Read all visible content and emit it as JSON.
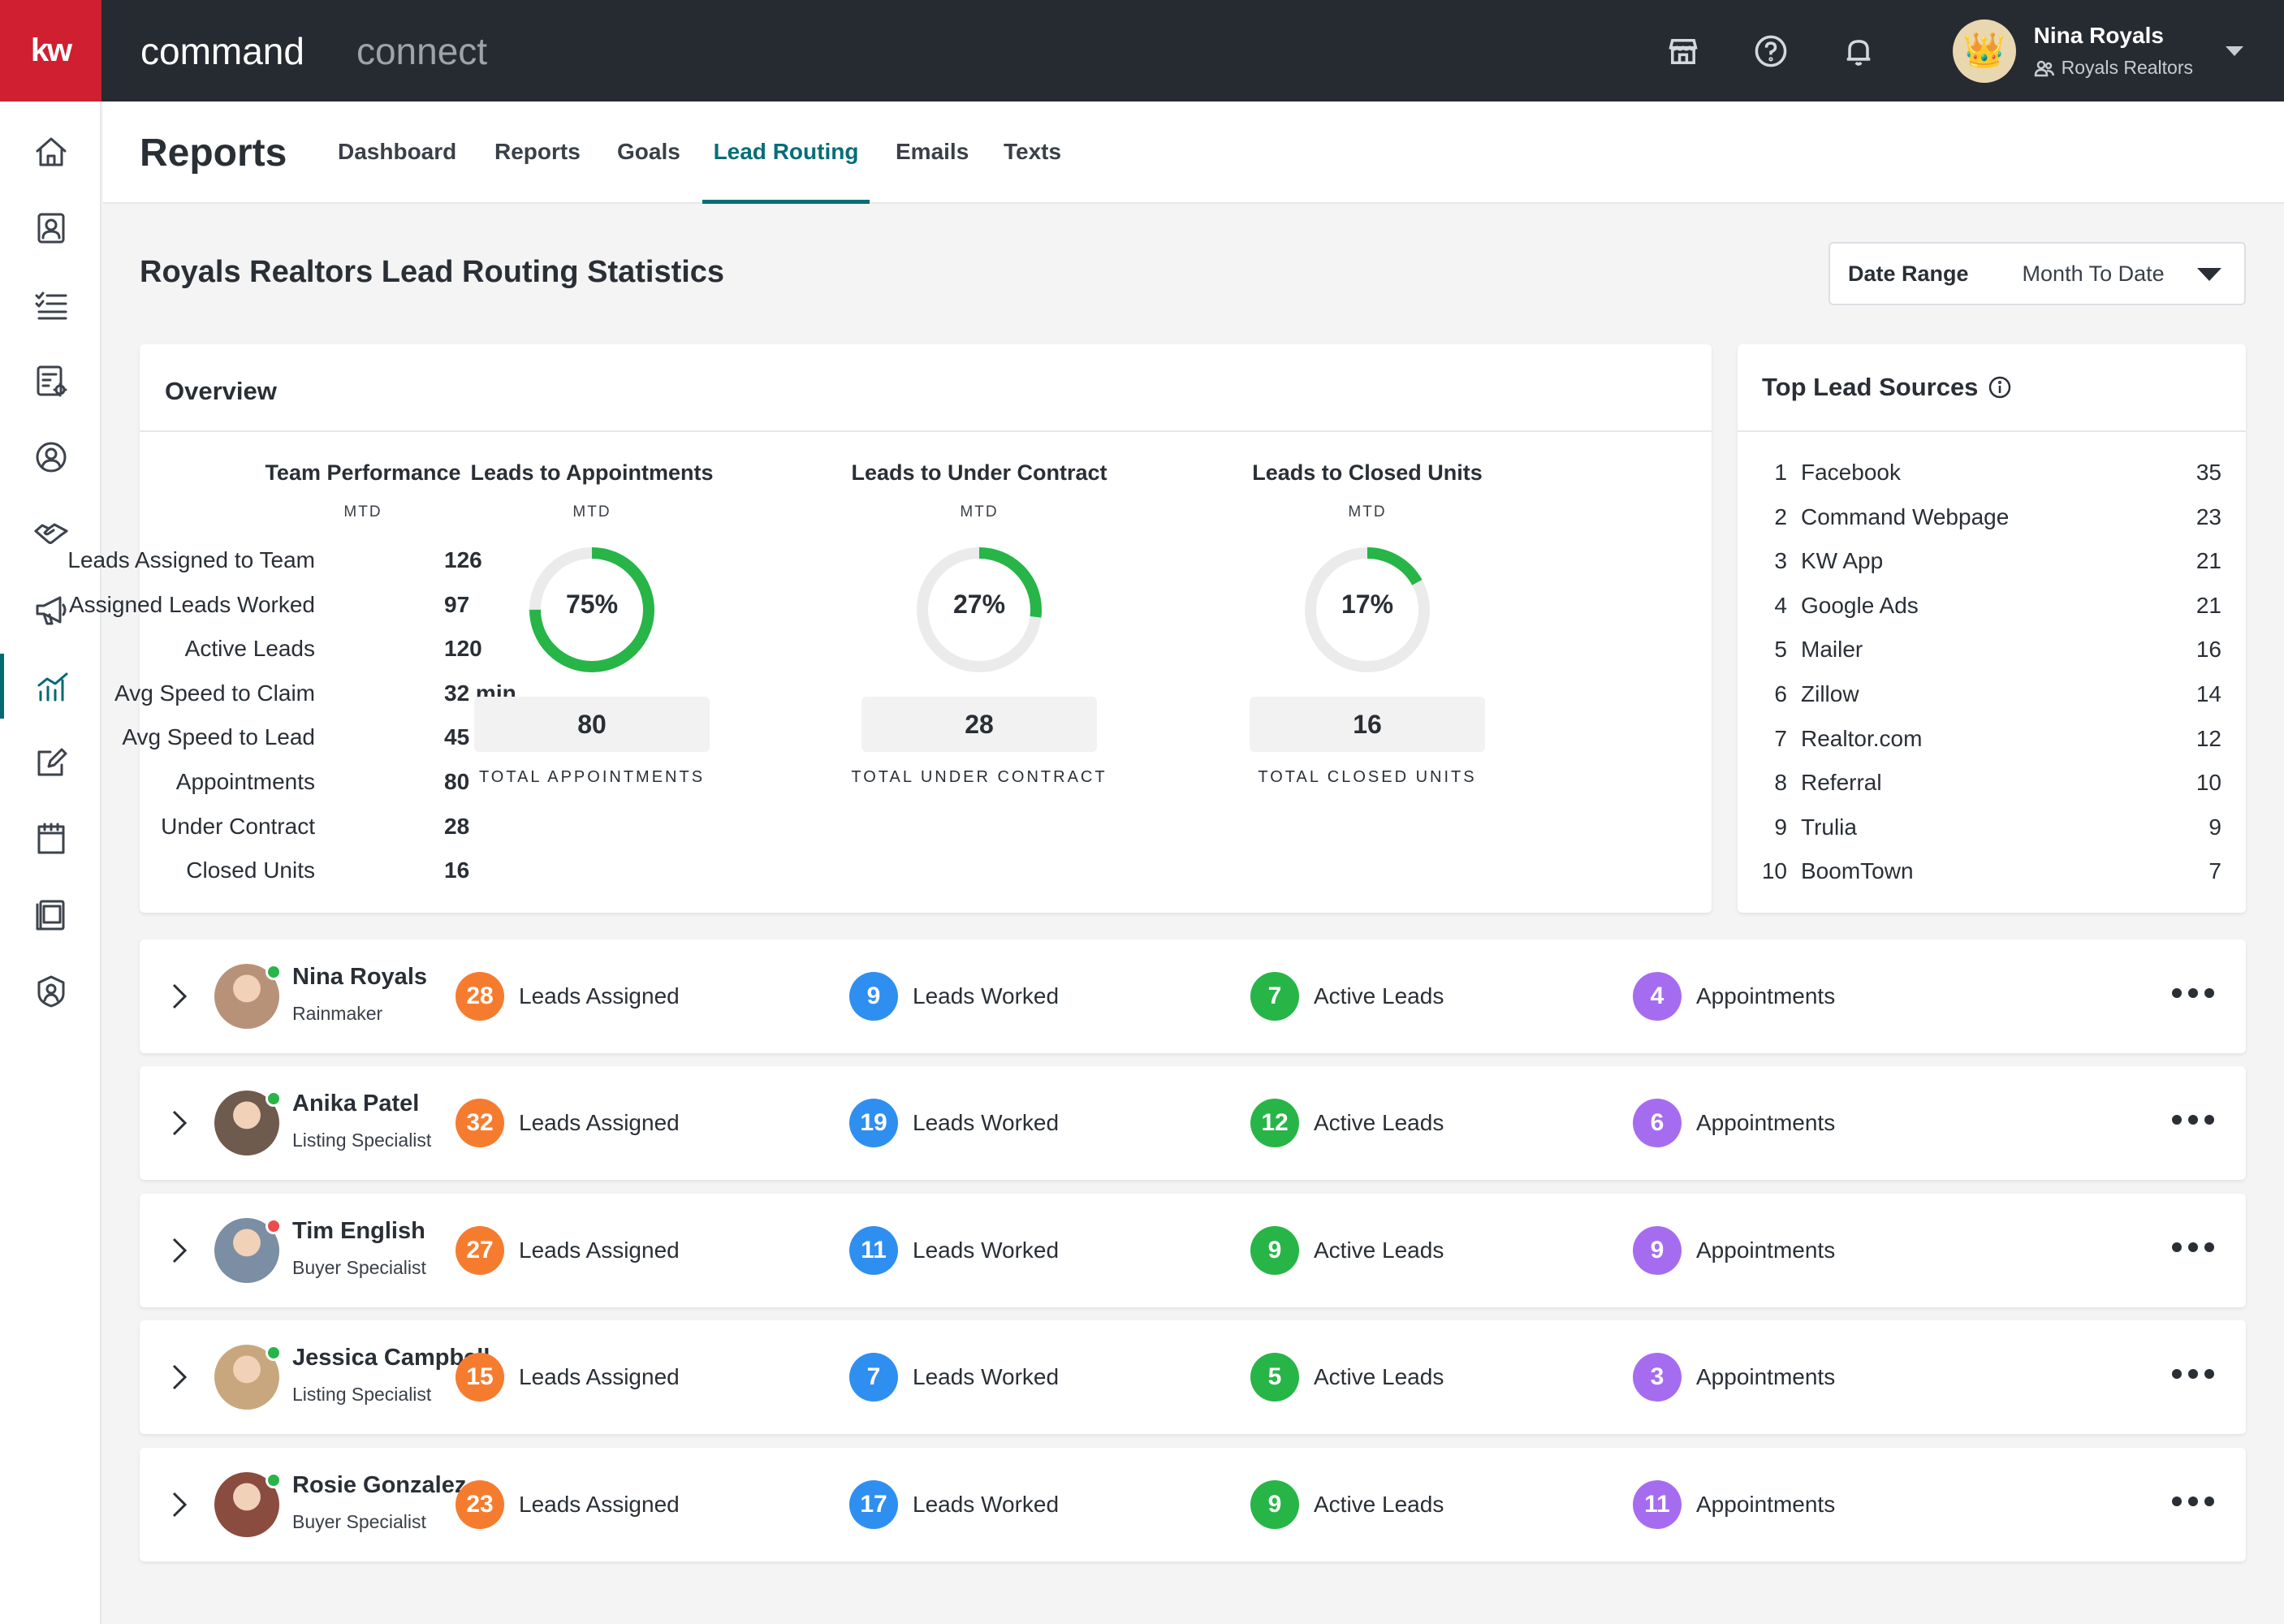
{
  "topbar": {
    "logo": "kw",
    "app_primary": "command",
    "app_secondary": "connect",
    "icons": [
      "store-icon",
      "help-icon",
      "bell-icon"
    ],
    "user": {
      "name": "Nina Royals",
      "team": "Royals Realtors",
      "avatar_icon": "crown-icon"
    }
  },
  "sidebar": {
    "items": [
      "home-icon",
      "contacts-icon",
      "tasks-icon",
      "forms-icon",
      "profile-icon",
      "handshake-icon",
      "megaphone-icon",
      "reports-icon",
      "edit-icon",
      "calendar-icon",
      "kw-docs-icon",
      "help-person-icon"
    ],
    "active_index": 7
  },
  "subheader": {
    "title": "Reports",
    "tabs": [
      {
        "label": "Dashboard",
        "active": false
      },
      {
        "label": "Reports",
        "active": false
      },
      {
        "label": "Goals",
        "active": false
      },
      {
        "label": "Lead Routing",
        "active": true
      },
      {
        "label": "Emails",
        "active": false
      },
      {
        "label": "Texts",
        "active": false
      }
    ]
  },
  "section_title": "Royals Realtors Lead Routing Statistics",
  "date_range": {
    "label": "Date Range",
    "value": "Month To Date"
  },
  "overview": {
    "title": "Overview",
    "team_performance": {
      "title": "Team Performance",
      "period": "MTD",
      "rows": [
        {
          "label": "Leads Assigned to Team",
          "value": "126"
        },
        {
          "label": "Assigned Leads Worked",
          "value": "97"
        },
        {
          "label": "Active Leads",
          "value": "120"
        },
        {
          "label": "Avg Speed to Claim",
          "value": "32 min"
        },
        {
          "label": "Avg Speed to Lead",
          "value": "45 min"
        },
        {
          "label": "Appointments",
          "value": "80"
        },
        {
          "label": "Under Contract",
          "value": "28"
        },
        {
          "label": "Closed Units",
          "value": "16"
        }
      ]
    },
    "conversions": [
      {
        "title": "Leads to Appointments",
        "period": "MTD",
        "percent": 75,
        "percent_label": "75%",
        "total": "80",
        "total_label": "TOTAL APPOINTMENTS"
      },
      {
        "title": "Leads to Under Contract",
        "period": "MTD",
        "percent": 27,
        "percent_label": "27%",
        "total": "28",
        "total_label": "TOTAL UNDER CONTRACT"
      },
      {
        "title": "Leads to Closed Units",
        "period": "MTD",
        "percent": 17,
        "percent_label": "17%",
        "total": "16",
        "total_label": "TOTAL CLOSED UNITS"
      }
    ]
  },
  "top_sources": {
    "title": "Top Lead Sources",
    "items": [
      {
        "rank": "1",
        "name": "Facebook",
        "count": "35"
      },
      {
        "rank": "2",
        "name": "Command Webpage",
        "count": "23"
      },
      {
        "rank": "3",
        "name": "KW App",
        "count": "21"
      },
      {
        "rank": "4",
        "name": "Google Ads",
        "count": "21"
      },
      {
        "rank": "5",
        "name": "Mailer",
        "count": "16"
      },
      {
        "rank": "6",
        "name": "Zillow",
        "count": "14"
      },
      {
        "rank": "7",
        "name": "Realtor.com",
        "count": "12"
      },
      {
        "rank": "8",
        "name": "Referral",
        "count": "10"
      },
      {
        "rank": "9",
        "name": "Trulia",
        "count": "9"
      },
      {
        "rank": "10",
        "name": "BoomTown",
        "count": "7"
      }
    ]
  },
  "stat_labels": [
    "Leads Assigned",
    "Leads Worked",
    "Active Leads",
    "Appointments"
  ],
  "colors": {
    "brand_red": "#cf1f30",
    "accent_teal": "#036e78",
    "donut_green": "#27b548",
    "assigned": "#f57c2f",
    "worked": "#2f8ff0",
    "active": "#27b548",
    "appointments": "#a66cf0",
    "online": "#27b548",
    "offline": "#ee4b4b"
  },
  "agents": [
    {
      "name": "Nina Royals",
      "role": "Rainmaker",
      "status": "online",
      "assigned": "28",
      "worked": "9",
      "active": "7",
      "appointments": "4"
    },
    {
      "name": "Anika Patel",
      "role": "Listing Specialist",
      "status": "online",
      "assigned": "32",
      "worked": "19",
      "active": "12",
      "appointments": "6"
    },
    {
      "name": "Tim English",
      "role": "Buyer Specialist",
      "status": "offline",
      "assigned": "27",
      "worked": "11",
      "active": "9",
      "appointments": "9"
    },
    {
      "name": "Jessica Campbell",
      "role": "Listing Specialist",
      "status": "online",
      "assigned": "15",
      "worked": "7",
      "active": "5",
      "appointments": "3"
    },
    {
      "name": "Rosie Gonzalez",
      "role": "Buyer Specialist",
      "status": "online",
      "assigned": "23",
      "worked": "17",
      "active": "9",
      "appointments": "11"
    }
  ]
}
